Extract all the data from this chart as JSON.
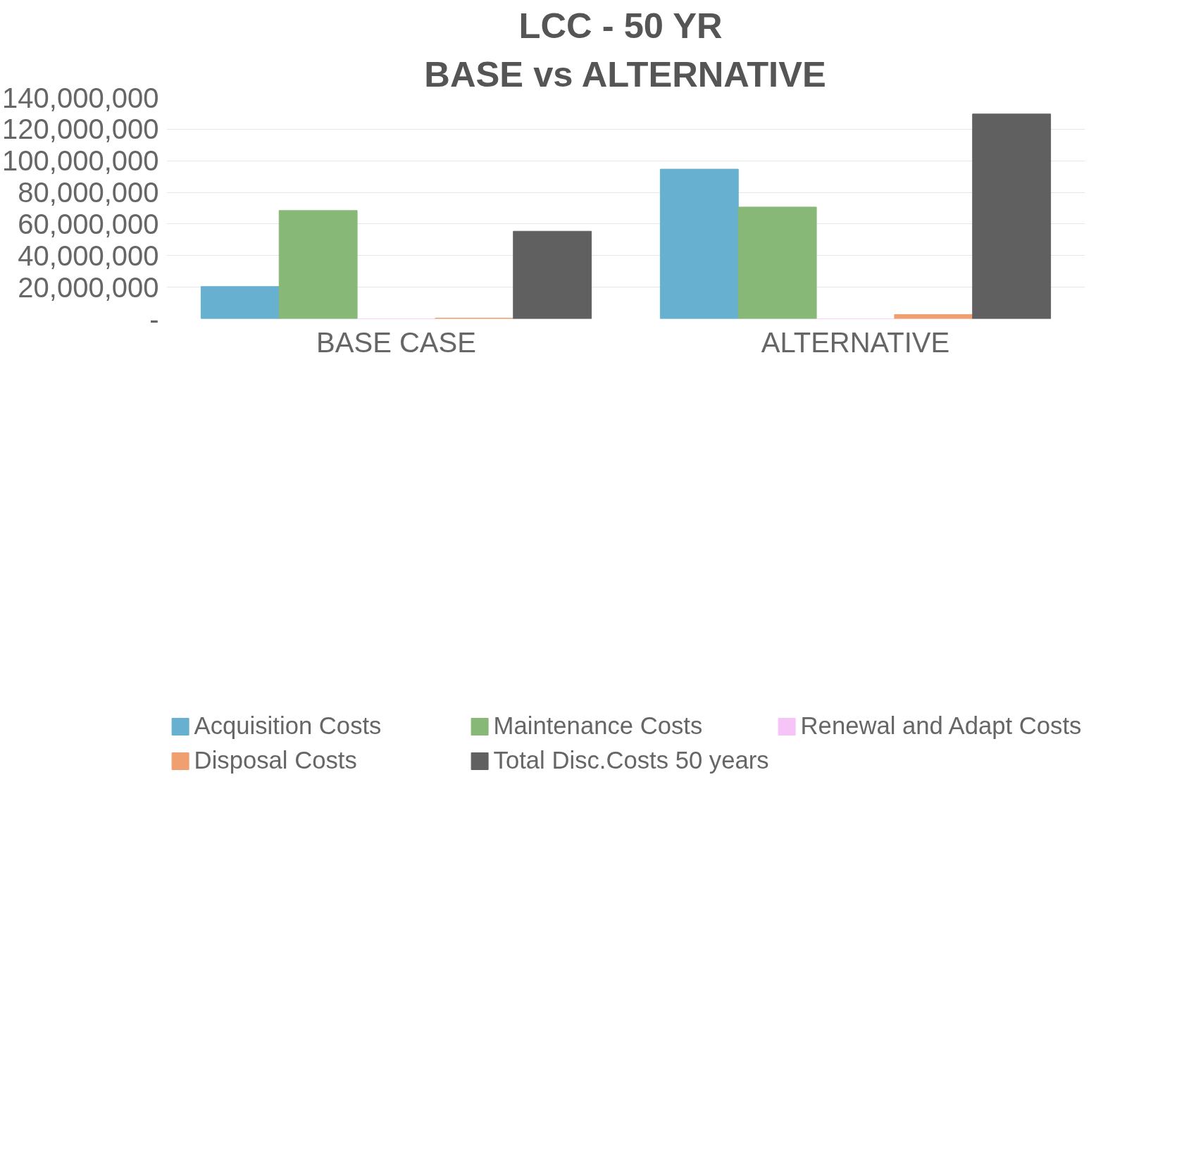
{
  "chart_data": {
    "type": "bar",
    "title": "LCC -  50 YR",
    "subtitle": "BASE vs ALTERNATIVE",
    "categories": [
      "BASE CASE",
      "ALTERNATIVE"
    ],
    "series": [
      {
        "name": "Acquisition Costs",
        "color": "#67b0d0",
        "values": [
          20400000,
          94700000
        ]
      },
      {
        "name": "Maintenance Costs",
        "color": "#88b878",
        "values": [
          68500000,
          70700000
        ]
      },
      {
        "name": "Renewal and Adapt Costs",
        "color": "#f7c4f7",
        "values": [
          0,
          0
        ]
      },
      {
        "name": "Disposal Costs",
        "color": "#f0a070",
        "values": [
          400000,
          2700000
        ]
      },
      {
        "name": "Total Disc.Costs 50 years",
        "color": "#606060",
        "values": [
          55400000,
          129600000
        ]
      }
    ],
    "ylim": [
      0,
      140000000
    ],
    "yticks": [
      {
        "value": 0,
        "label": "-"
      },
      {
        "value": 20000000,
        "label": "20,000,000"
      },
      {
        "value": 40000000,
        "label": "40,000,000"
      },
      {
        "value": 60000000,
        "label": "60,000,000"
      },
      {
        "value": 80000000,
        "label": "80,000,000"
      },
      {
        "value": 100000000,
        "label": "100,000,000"
      },
      {
        "value": 120000000,
        "label": "120,000,000"
      },
      {
        "value": 140000000,
        "label": "140,000,000"
      }
    ],
    "grid": "y",
    "legend": "bottom"
  }
}
